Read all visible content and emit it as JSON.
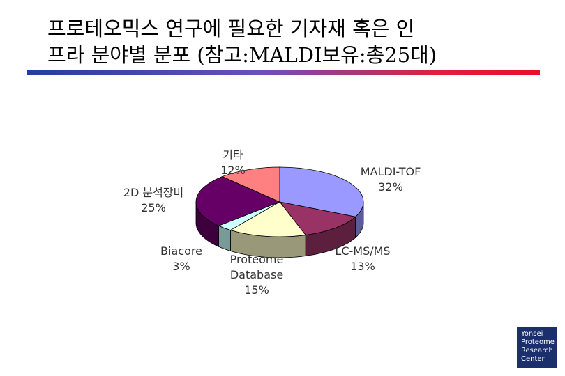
{
  "title": [
    "프로테오믹스 연구에 필요한 기자재 혹은 인",
    "프라 분야별 분포 (참고:MALDI보유:총25대)"
  ],
  "chart_data": {
    "type": "pie3d",
    "categories": [
      "MALDI-TOF",
      "LC-MS/MS",
      "Proteome Database",
      "Biacore",
      "2D 분석장비",
      "기타"
    ],
    "values": [
      32,
      13,
      15,
      3,
      25,
      12
    ],
    "value_labels": [
      "32%",
      "13%",
      "15%",
      "3%",
      "25%",
      "12%"
    ],
    "colors": [
      "#9999ff",
      "#993366",
      "#ffffcc",
      "#ccffff",
      "#660066",
      "#ff8080"
    ]
  },
  "logo": [
    "Yonsei",
    "Proteome",
    "Research",
    "Center"
  ]
}
